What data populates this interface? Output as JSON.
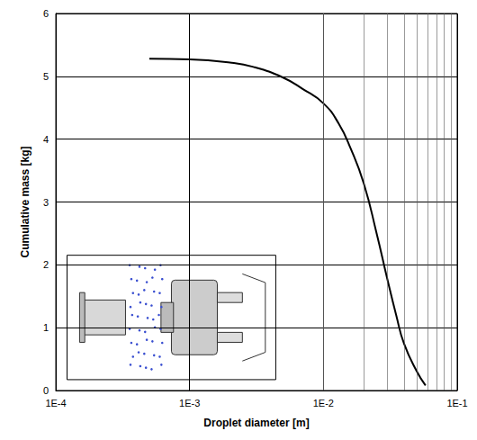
{
  "chart_data": {
    "type": "line",
    "x_label": "Droplet diameter [m]",
    "y_label": "Cumulative mass [kg]",
    "x": [
      0.0005,
      0.001,
      0.002,
      0.003,
      0.005,
      0.007,
      0.01,
      0.013,
      0.016,
      0.02,
      0.025,
      0.03,
      0.035,
      0.04,
      0.05,
      0.058
    ],
    "values": [
      5.28,
      5.27,
      5.22,
      5.15,
      4.98,
      4.8,
      4.57,
      4.25,
      3.85,
      3.3,
      2.5,
      1.78,
      1.2,
      0.75,
      0.3,
      0.08
    ],
    "color": "#000000",
    "log": "x",
    "xlim": [
      0.0001,
      0.1
    ],
    "xticks": [
      {
        "value": 0.0001,
        "label": "1E-4"
      },
      {
        "value": 0.001,
        "label": "1E-3"
      },
      {
        "value": 0.01,
        "label": "1E-2"
      },
      {
        "value": 0.1,
        "label": "1E-1"
      }
    ],
    "ylim": [
      0,
      6
    ],
    "yticks": [
      0,
      1,
      2,
      3,
      4,
      5,
      6
    ],
    "grid": true
  }
}
